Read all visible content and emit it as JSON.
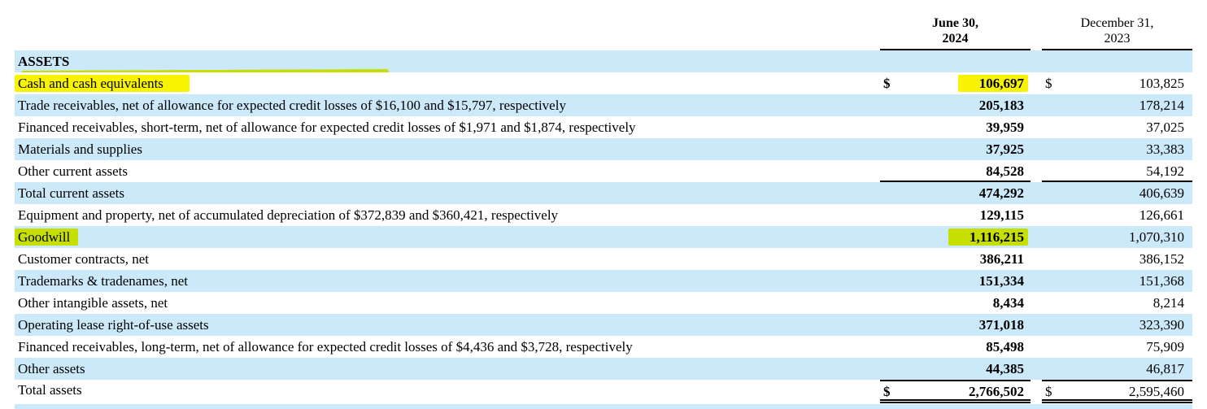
{
  "document": {
    "type": "balance-sheet-assets",
    "header": {
      "col_2024": [
        "June 30,",
        "2024"
      ],
      "col_2023": [
        "December 31,",
        "2023"
      ]
    },
    "colors": {
      "row_shade": "#cce9fa",
      "highlight": "#f8f400",
      "text": "#000000",
      "rule": "#000000"
    },
    "rows": [
      {
        "label": "ASSETS",
        "d2024": "",
        "v2024": "",
        "d2023": "",
        "v2023": "",
        "shaded": true,
        "section": true,
        "streak": true
      },
      {
        "label": "Cash and cash equivalents",
        "d2024": "$",
        "v2024": "106,697",
        "d2023": "$",
        "v2023": "103,825",
        "shaded": false,
        "hl_label": true,
        "hl_label_wide": true,
        "hl_value": true
      },
      {
        "label": "Trade receivables, net of allowance for expected credit losses of $16,100 and $15,797, respectively",
        "d2024": "",
        "v2024": "205,183",
        "d2023": "",
        "v2023": "178,214",
        "shaded": true
      },
      {
        "label": "Financed receivables, short-term, net of allowance for expected credit losses of $1,971 and $1,874, respectively",
        "d2024": "",
        "v2024": "39,959",
        "d2023": "",
        "v2023": "37,025",
        "shaded": false
      },
      {
        "label": "Materials and supplies",
        "d2024": "",
        "v2024": "37,925",
        "d2023": "",
        "v2023": "33,383",
        "shaded": true
      },
      {
        "label": "Other current assets",
        "d2024": "",
        "v2024": "84,528",
        "d2023": "",
        "v2023": "54,192",
        "shaded": false,
        "rule_below": true
      },
      {
        "label": "Total current assets",
        "d2024": "",
        "v2024": "474,292",
        "d2023": "",
        "v2023": "406,639",
        "shaded": true
      },
      {
        "label": "Equipment and property, net of accumulated depreciation of $372,839 and $360,421, respectively",
        "d2024": "",
        "v2024": "129,115",
        "d2023": "",
        "v2023": "126,661",
        "shaded": false
      },
      {
        "label": "Goodwill",
        "d2024": "",
        "v2024": "1,116,215",
        "d2023": "",
        "v2023": "1,070,310",
        "shaded": true,
        "hl_label": true,
        "hl_value": true
      },
      {
        "label": "Customer contracts, net",
        "d2024": "",
        "v2024": "386,211",
        "d2023": "",
        "v2023": "386,152",
        "shaded": false
      },
      {
        "label": "Trademarks & tradenames, net",
        "d2024": "",
        "v2024": "151,334",
        "d2023": "",
        "v2023": "151,368",
        "shaded": true
      },
      {
        "label": "Other intangible assets, net",
        "d2024": "",
        "v2024": "8,434",
        "d2023": "",
        "v2023": "8,214",
        "shaded": false
      },
      {
        "label": "Operating lease right-of-use assets",
        "d2024": "",
        "v2024": "371,018",
        "d2023": "",
        "v2023": "323,390",
        "shaded": true
      },
      {
        "label": "Financed receivables, long-term, net of allowance for expected credit losses of $4,436 and $3,728, respectively",
        "d2024": "",
        "v2024": "85,498",
        "d2023": "",
        "v2023": "75,909",
        "shaded": false
      },
      {
        "label": "Other assets",
        "d2024": "",
        "v2024": "44,385",
        "d2023": "",
        "v2023": "46,817",
        "shaded": true
      },
      {
        "label": "Total assets",
        "d2024": "$",
        "v2024": "2,766,502",
        "d2023": "$",
        "v2023": "2,595,460",
        "shaded": false,
        "total": true
      }
    ]
  }
}
